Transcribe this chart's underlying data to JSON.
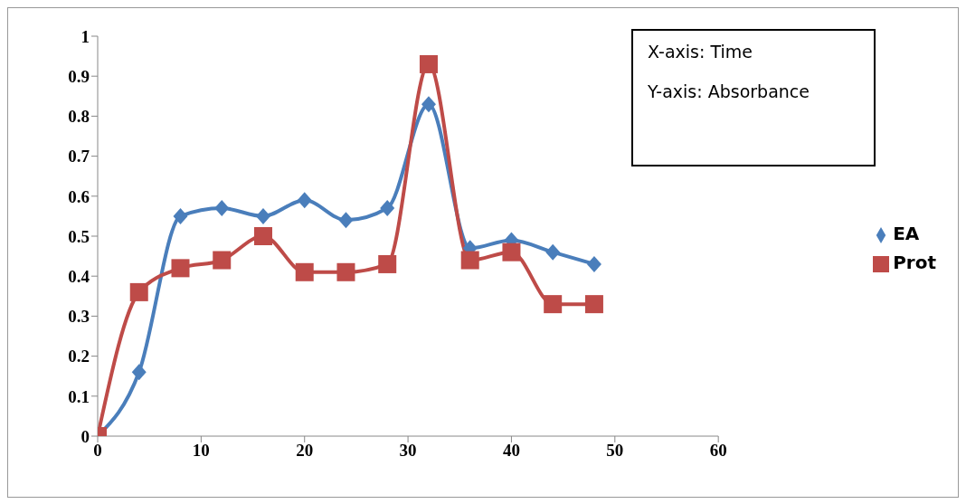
{
  "chart_data": {
    "type": "line",
    "x": [
      0,
      4,
      8,
      12,
      16,
      20,
      24,
      28,
      32,
      36,
      40,
      44,
      48
    ],
    "series": [
      {
        "name": "EA",
        "color": "#4a7ebb",
        "marker": "diamond",
        "values": [
          0,
          0.16,
          0.55,
          0.57,
          0.55,
          0.59,
          0.54,
          0.57,
          0.83,
          0.47,
          0.49,
          0.46,
          0.43
        ]
      },
      {
        "name": "Prot",
        "color": "#be4b48",
        "marker": "square",
        "values": [
          0,
          0.36,
          0.42,
          0.44,
          0.5,
          0.41,
          0.41,
          0.43,
          0.93,
          0.44,
          0.46,
          0.33,
          0.33
        ]
      }
    ],
    "xlim": [
      0,
      60
    ],
    "xticks": [
      0,
      10,
      20,
      30,
      40,
      50,
      60
    ],
    "ylim": [
      0,
      1
    ],
    "yticks": [
      0,
      0.1,
      0.2,
      0.3,
      0.4,
      0.5,
      0.6,
      0.7,
      0.8,
      0.9,
      1
    ],
    "grid": false,
    "legend": "right",
    "line_style": "solid",
    "annotations": [
      "X-axis: Time",
      "Y-axis: Absorbance"
    ]
  }
}
